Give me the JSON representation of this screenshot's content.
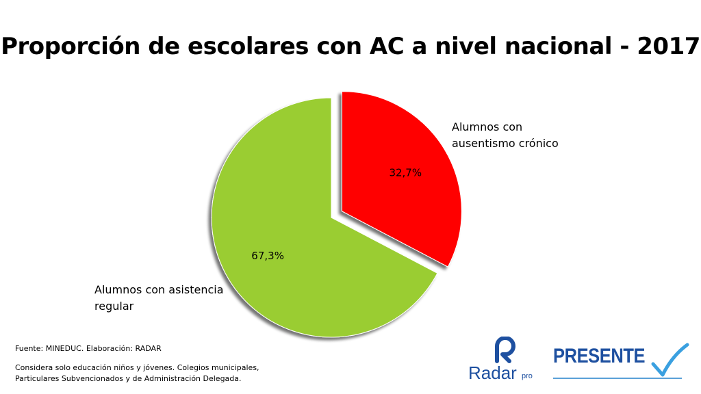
{
  "chart_data": {
    "type": "pie",
    "title": "Proporción de escolares con AC a nivel nacional - 2017",
    "slices": [
      {
        "name": "Alumnos con ausentismo crónico",
        "label_lines": [
          "Alumnos con",
          "ausentismo crónico"
        ],
        "value": 32.7,
        "value_label": "32,7%",
        "color": "#ff0000",
        "exploded": true
      },
      {
        "name": "Alumnos con asistencia regular",
        "label_lines": [
          "Alumnos con asistencia",
          "regular"
        ],
        "value": 67.3,
        "value_label": "67,3%",
        "color": "#9acd32",
        "exploded": false
      }
    ]
  },
  "footer": {
    "source": "Fuente: MINEDUC. Elaboración: RADAR",
    "note_lines": [
      "Considera solo educación niños y jóvenes. Colegios municipales,",
      "Particulares Subvencionados y de Administración Delegada."
    ]
  },
  "logos": {
    "radar": {
      "text": "Radar",
      "suffix": "pro",
      "color": "#1e50a0"
    },
    "presente": {
      "text": "PRESENTE",
      "color": "#1e50a0",
      "check_color": "#3aa0e0"
    }
  }
}
